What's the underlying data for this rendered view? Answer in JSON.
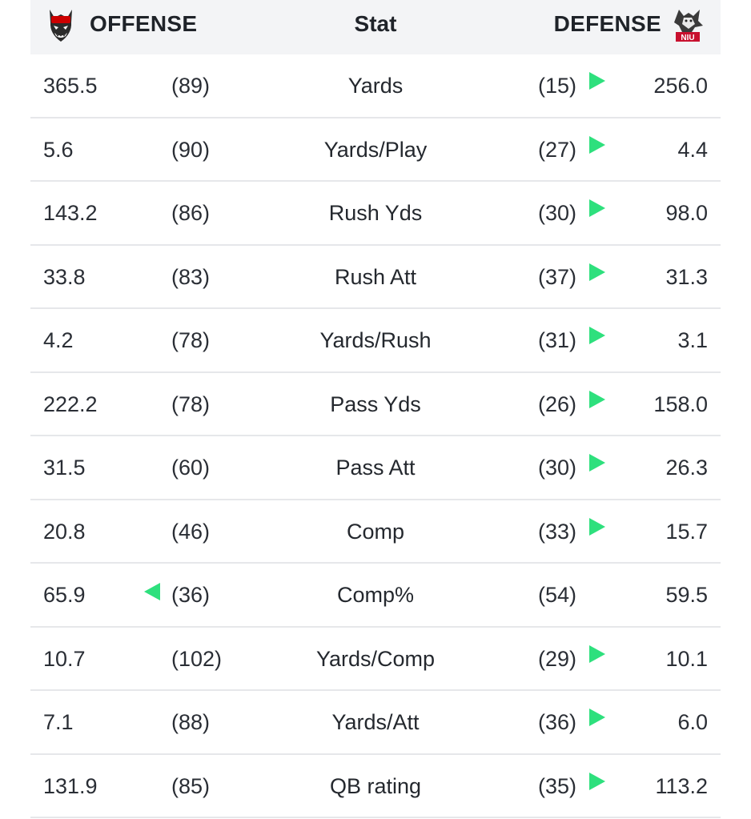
{
  "header": {
    "offense_label": "OFFENSE",
    "stat_label": "Stat",
    "defense_label": "DEFENSE",
    "offense_logo": "wolf-logo-icon",
    "defense_logo": "husky-niu-logo-icon"
  },
  "colors": {
    "advantage_arrow": "#2ee07d",
    "header_bg": "#f3f4f6",
    "row_divider": "#e6e7ea"
  },
  "rows": [
    {
      "off_val": "365.5",
      "off_rank": "(89)",
      "stat": "Yards",
      "def_rank": "(15)",
      "def_val": "256.0",
      "arrow": "right"
    },
    {
      "off_val": "5.6",
      "off_rank": "(90)",
      "stat": "Yards/Play",
      "def_rank": "(27)",
      "def_val": "4.4",
      "arrow": "right"
    },
    {
      "off_val": "143.2",
      "off_rank": "(86)",
      "stat": "Rush Yds",
      "def_rank": "(30)",
      "def_val": "98.0",
      "arrow": "right"
    },
    {
      "off_val": "33.8",
      "off_rank": "(83)",
      "stat": "Rush Att",
      "def_rank": "(37)",
      "def_val": "31.3",
      "arrow": "right"
    },
    {
      "off_val": "4.2",
      "off_rank": "(78)",
      "stat": "Yards/Rush",
      "def_rank": "(31)",
      "def_val": "3.1",
      "arrow": "right"
    },
    {
      "off_val": "222.2",
      "off_rank": "(78)",
      "stat": "Pass Yds",
      "def_rank": "(26)",
      "def_val": "158.0",
      "arrow": "right"
    },
    {
      "off_val": "31.5",
      "off_rank": "(60)",
      "stat": "Pass Att",
      "def_rank": "(30)",
      "def_val": "26.3",
      "arrow": "right"
    },
    {
      "off_val": "20.8",
      "off_rank": "(46)",
      "stat": "Comp",
      "def_rank": "(33)",
      "def_val": "15.7",
      "arrow": "right"
    },
    {
      "off_val": "65.9",
      "off_rank": "(36)",
      "stat": "Comp%",
      "def_rank": "(54)",
      "def_val": "59.5",
      "arrow": "left"
    },
    {
      "off_val": "10.7",
      "off_rank": "(102)",
      "stat": "Yards/Comp",
      "def_rank": "(29)",
      "def_val": "10.1",
      "arrow": "right"
    },
    {
      "off_val": "7.1",
      "off_rank": "(88)",
      "stat": "Yards/Att",
      "def_rank": "(36)",
      "def_val": "6.0",
      "arrow": "right"
    },
    {
      "off_val": "131.9",
      "off_rank": "(85)",
      "stat": "QB rating",
      "def_rank": "(35)",
      "def_val": "113.2",
      "arrow": "right"
    }
  ]
}
